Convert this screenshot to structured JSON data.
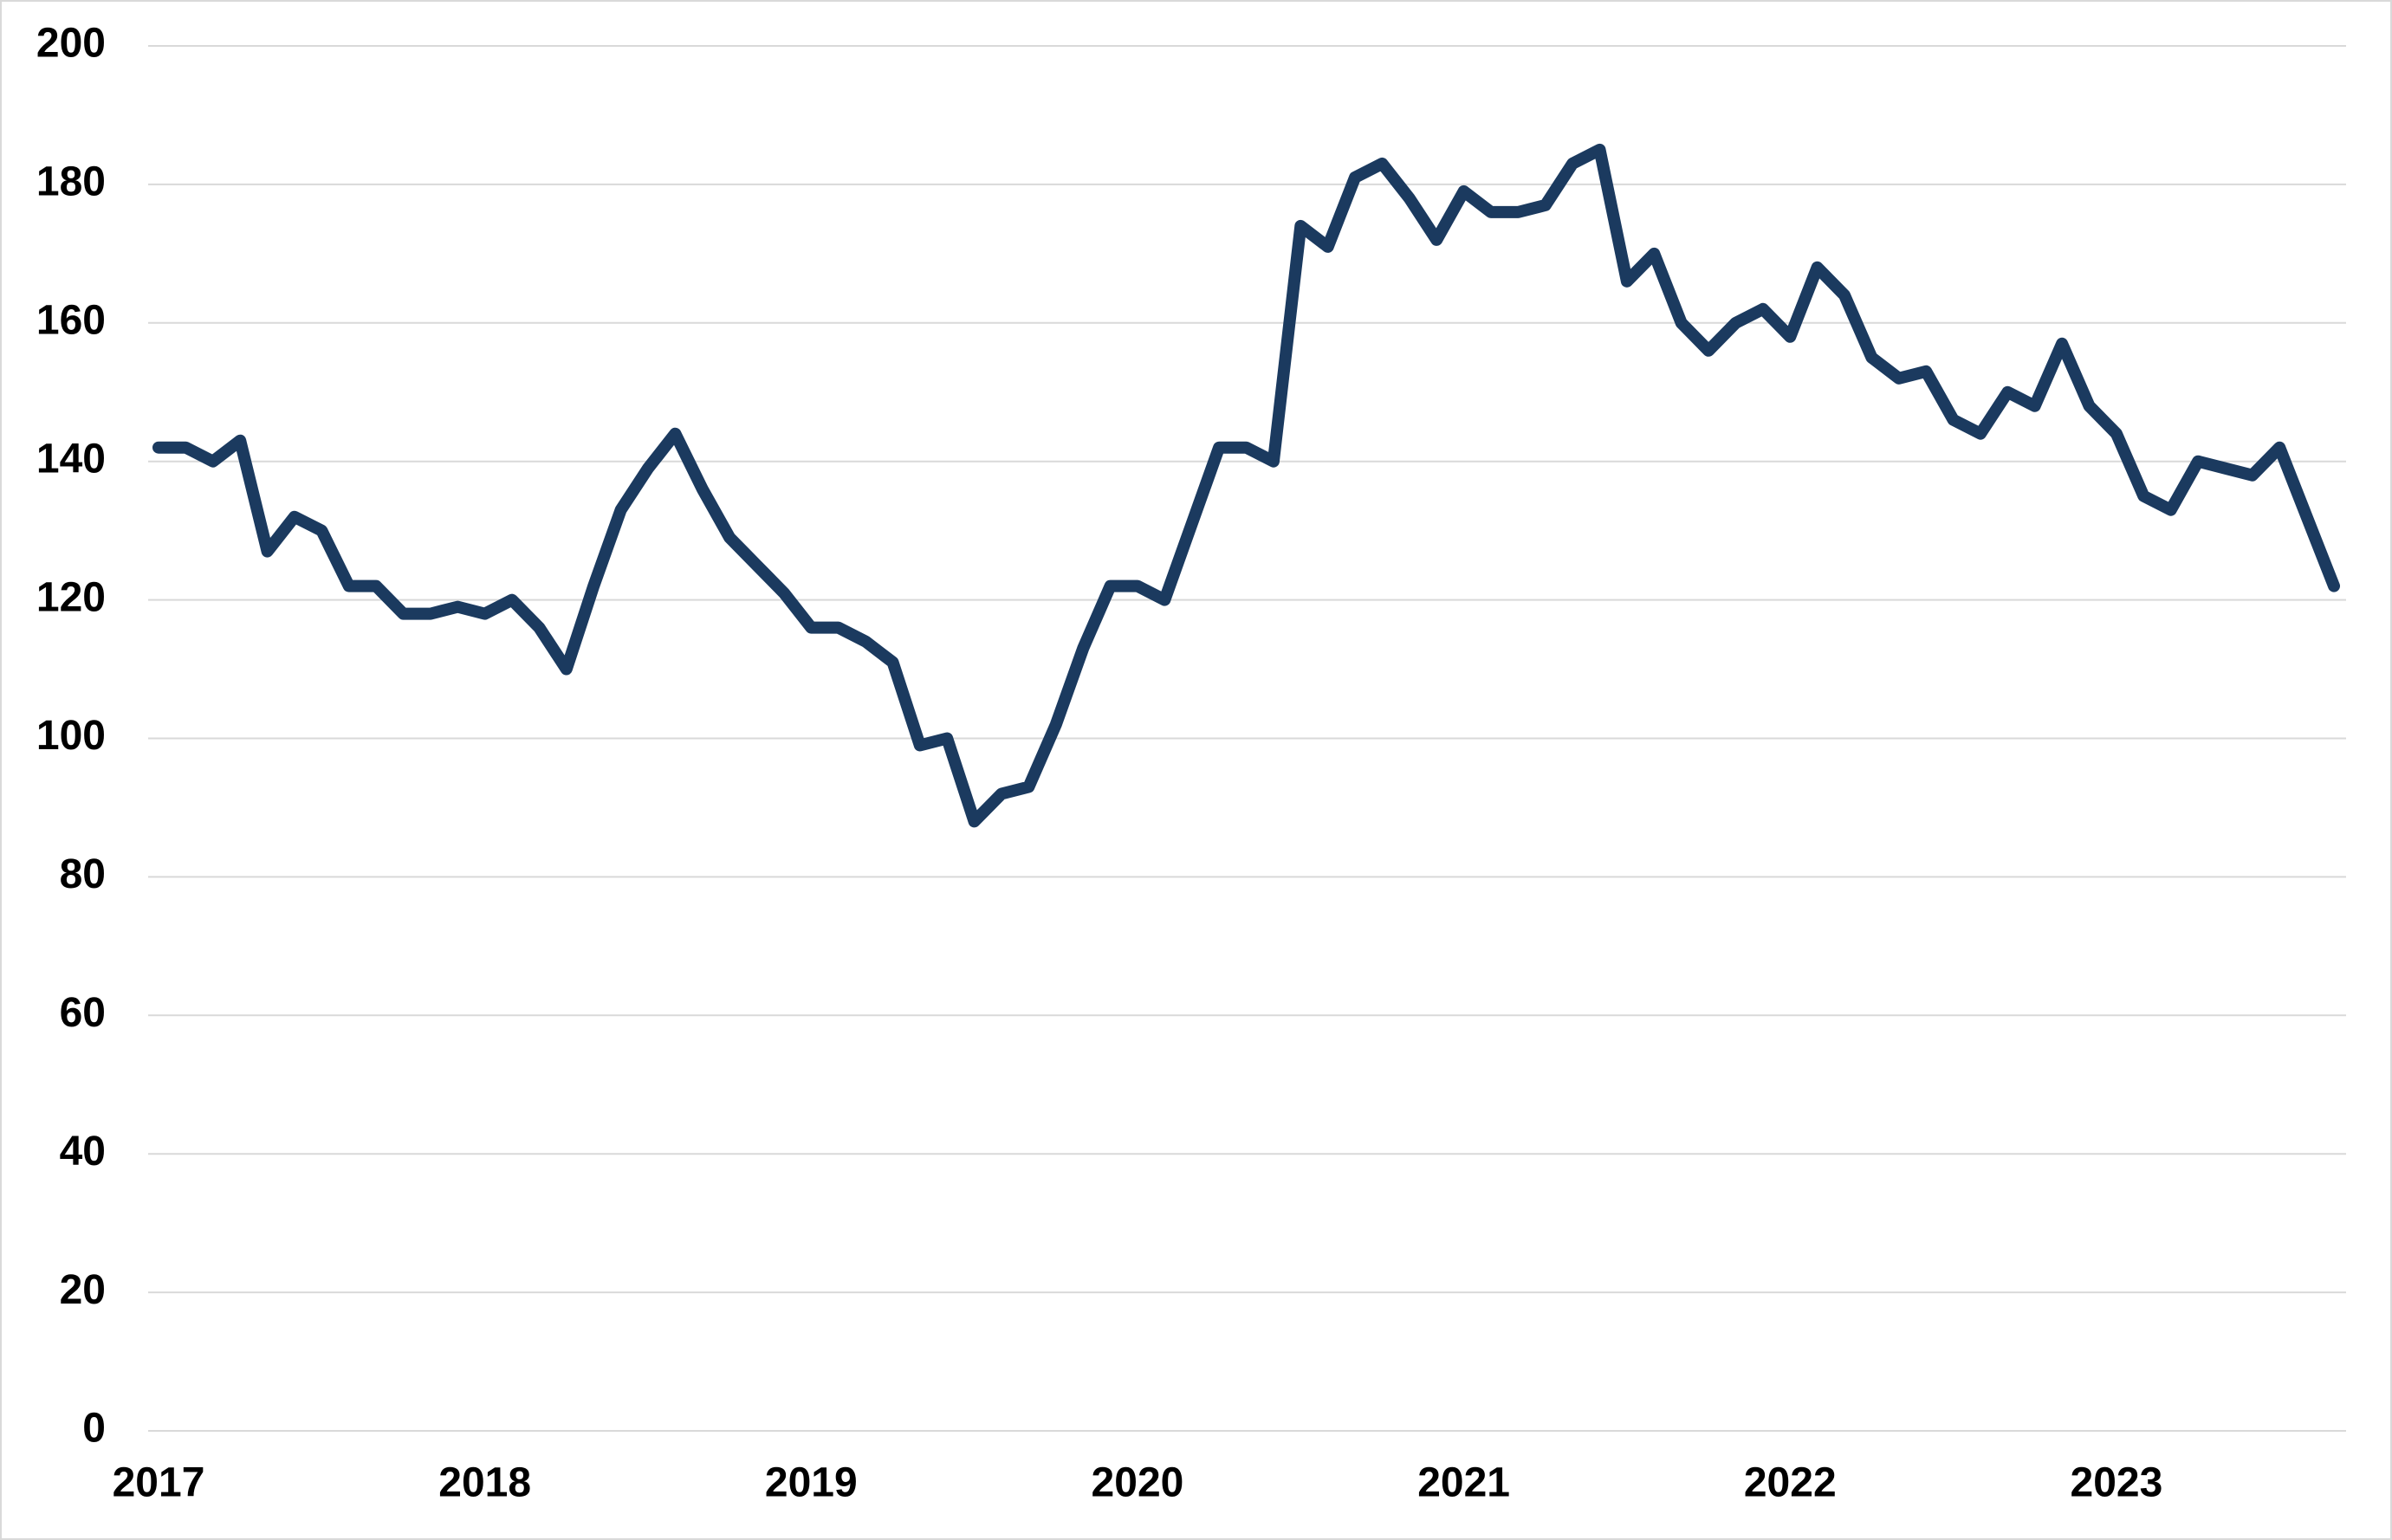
{
  "chart_data": {
    "type": "line",
    "categories": [
      "2017",
      null,
      null,
      null,
      null,
      null,
      null,
      null,
      null,
      null,
      null,
      null,
      "2018",
      null,
      null,
      null,
      null,
      null,
      null,
      null,
      null,
      null,
      null,
      null,
      "2019",
      null,
      null,
      null,
      null,
      null,
      null,
      null,
      null,
      null,
      null,
      null,
      "2020",
      null,
      null,
      null,
      null,
      null,
      null,
      null,
      null,
      null,
      null,
      null,
      "2021",
      null,
      null,
      null,
      null,
      null,
      null,
      null,
      null,
      null,
      null,
      null,
      "2022",
      null,
      null,
      null,
      null,
      null,
      null,
      null,
      null,
      null,
      null,
      null,
      "2023",
      null,
      null,
      null,
      null,
      null,
      null,
      null,
      null
    ],
    "values": [
      142,
      142,
      140,
      143,
      127,
      132,
      130,
      122,
      122,
      118,
      118,
      119,
      118,
      120,
      116,
      110,
      122,
      133,
      139,
      144,
      136,
      129,
      125,
      121,
      116,
      116,
      114,
      111,
      99,
      100,
      88,
      92,
      93,
      102,
      113,
      122,
      122,
      120,
      131,
      142,
      142,
      140,
      174,
      171,
      181,
      183,
      178,
      172,
      179,
      176,
      176,
      177,
      183,
      185,
      166,
      170,
      160,
      156,
      160,
      162,
      158,
      168,
      164,
      155,
      152,
      153,
      146,
      144,
      150,
      148,
      157,
      148,
      144,
      135,
      133,
      140,
      139,
      138,
      142,
      132,
      122
    ],
    "color": "#1b3a5f",
    "ylim": [
      0,
      200
    ],
    "yticks": [
      0,
      20,
      40,
      60,
      80,
      100,
      120,
      140,
      160,
      180,
      200
    ],
    "grid": true
  }
}
